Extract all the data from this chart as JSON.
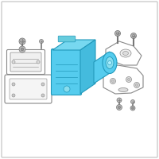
{
  "bg_color": "#ffffff",
  "border_color": "#cccccc",
  "highlight_color": "#55ccee",
  "highlight_edge": "#2299bb",
  "outline_color": "#aaaaaa",
  "outline_edge": "#888888",
  "screw_color": "#bbbbbb",
  "screw_edge": "#777777",
  "fig_width": 2.0,
  "fig_height": 2.0,
  "dpi": 100
}
